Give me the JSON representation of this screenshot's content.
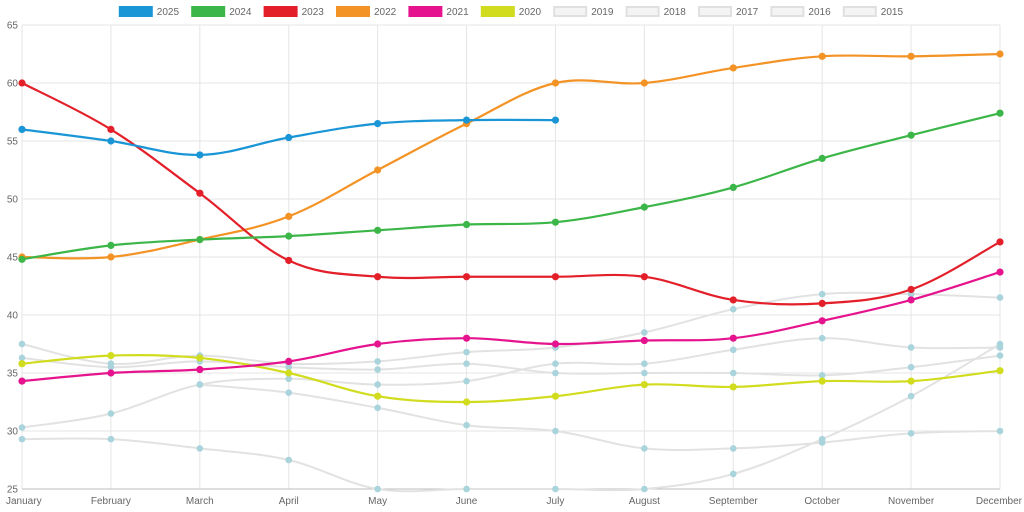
{
  "chart_data": {
    "type": "line",
    "categories": [
      "January",
      "February",
      "March",
      "April",
      "May",
      "June",
      "July",
      "August",
      "September",
      "October",
      "November",
      "December"
    ],
    "ylim": [
      25,
      65
    ],
    "yticks": [
      25,
      30,
      35,
      40,
      45,
      50,
      55,
      60,
      65
    ],
    "grid": true,
    "legend_position": "top",
    "series": [
      {
        "name": "2025",
        "color": "#1a96d6",
        "active": true,
        "values": [
          56.0,
          55.0,
          53.8,
          55.3,
          56.5,
          56.8,
          56.8,
          null,
          null,
          null,
          null,
          null
        ]
      },
      {
        "name": "2024",
        "color": "#3cb648",
        "active": true,
        "values": [
          44.8,
          46.0,
          46.5,
          46.8,
          47.3,
          47.8,
          48.0,
          49.3,
          51.0,
          53.5,
          55.5,
          57.4
        ]
      },
      {
        "name": "2023",
        "color": "#e3202a",
        "active": true,
        "values": [
          60.0,
          56.0,
          50.5,
          44.7,
          43.3,
          43.3,
          43.3,
          43.3,
          41.3,
          41.0,
          42.2,
          46.3
        ]
      },
      {
        "name": "2022",
        "color": "#f39325",
        "active": true,
        "values": [
          45.0,
          45.0,
          46.5,
          48.5,
          52.5,
          56.5,
          60.0,
          60.0,
          61.3,
          62.3,
          62.3,
          62.5
        ]
      },
      {
        "name": "2021",
        "color": "#e5148e",
        "active": true,
        "values": [
          34.3,
          35.0,
          35.3,
          36.0,
          37.5,
          38.0,
          37.5,
          37.8,
          38.0,
          39.5,
          41.3,
          43.7
        ]
      },
      {
        "name": "2020",
        "color": "#d2dc1e",
        "active": true,
        "values": [
          35.8,
          36.5,
          36.3,
          35.0,
          33.0,
          32.5,
          33.0,
          34.0,
          33.8,
          34.3,
          34.3,
          35.2
        ]
      },
      {
        "name": "2019",
        "color": "#e4e4e4",
        "active": false,
        "values": [
          37.5,
          35.8,
          36.5,
          35.8,
          36.0,
          36.8,
          37.2,
          38.5,
          40.5,
          41.8,
          41.8,
          41.5
        ]
      },
      {
        "name": "2018",
        "color": "#e4e4e4",
        "active": false,
        "values": [
          36.3,
          35.5,
          36.0,
          35.5,
          35.3,
          35.8,
          35.0,
          35.0,
          35.0,
          34.8,
          35.5,
          36.5
        ]
      },
      {
        "name": "2017",
        "color": "#e4e4e4",
        "active": false,
        "values": [
          30.3,
          31.5,
          34.0,
          34.5,
          34.0,
          34.3,
          35.8,
          35.8,
          37.0,
          38.0,
          37.2,
          37.2
        ]
      },
      {
        "name": "2016",
        "color": "#e4e4e4",
        "active": false,
        "values": [
          29.3,
          29.3,
          28.5,
          27.5,
          25.0,
          25.0,
          25.0,
          25.0,
          26.3,
          29.3,
          33.0,
          37.5
        ]
      },
      {
        "name": "2015",
        "color": "#e4e4e4",
        "active": false,
        "values": [
          null,
          null,
          34.0,
          33.3,
          32.0,
          30.5,
          30.0,
          28.5,
          28.5,
          29.0,
          29.8,
          30.0
        ]
      }
    ]
  },
  "style": {
    "inactive_point_color": "#a9d4dc",
    "legend_text_color": "#666666"
  }
}
